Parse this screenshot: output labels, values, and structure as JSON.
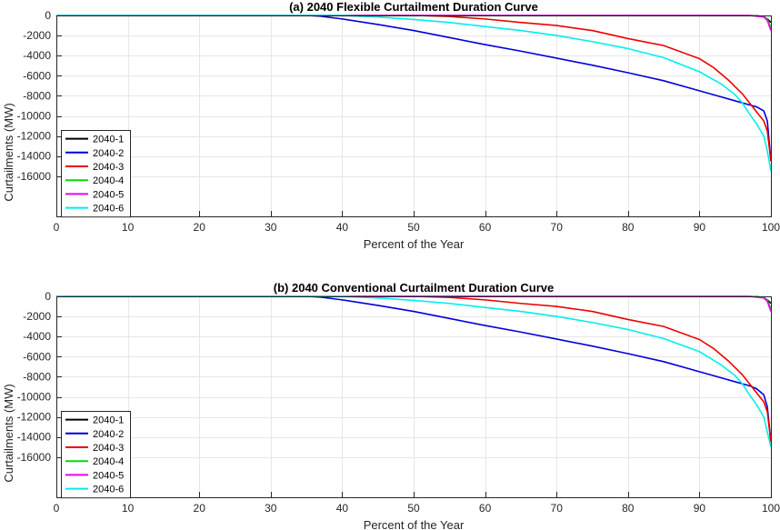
{
  "chart_data": [
    {
      "type": "line",
      "title": "(a) 2040 Flexible Curtailment Duration Curve",
      "xlabel": "Percent of the Year",
      "ylabel": "Curtailments (MW)",
      "xlim": [
        0,
        100
      ],
      "ylim": [
        -20000,
        0
      ],
      "xticks": [
        0,
        10,
        20,
        30,
        40,
        50,
        60,
        70,
        80,
        90,
        100
      ],
      "yticks": [
        0,
        -2000,
        -4000,
        -6000,
        -8000,
        -10000,
        -12000,
        -14000,
        -16000
      ],
      "grid": true,
      "legend_position": "bottom-left",
      "series": [
        {
          "name": "2040-1",
          "color": "#000000",
          "x": [
            0,
            96,
            98,
            99,
            99.5,
            100
          ],
          "y": [
            0,
            0,
            -30,
            -120,
            -350,
            -700
          ]
        },
        {
          "name": "2040-2",
          "color": "#0000dd",
          "x": [
            0,
            35,
            37,
            40,
            45,
            50,
            55,
            60,
            65,
            70,
            75,
            80,
            85,
            90,
            93,
            95,
            97,
            98,
            99,
            99.5,
            100
          ],
          "y": [
            0,
            0,
            -70,
            -350,
            -900,
            -1500,
            -2200,
            -2900,
            -3550,
            -4250,
            -4950,
            -5700,
            -6500,
            -7500,
            -8100,
            -8500,
            -8900,
            -9100,
            -9500,
            -10500,
            -14500
          ]
        },
        {
          "name": "2040-3",
          "color": "#ee0000",
          "x": [
            0,
            50,
            55,
            60,
            65,
            70,
            75,
            80,
            85,
            90,
            92,
            94,
            96,
            97,
            98,
            99,
            99.5,
            100
          ],
          "y": [
            0,
            0,
            -100,
            -350,
            -700,
            -1000,
            -1500,
            -2300,
            -3000,
            -4300,
            -5200,
            -6400,
            -7800,
            -8700,
            -9600,
            -10500,
            -11500,
            -14500
          ]
        },
        {
          "name": "2040-4",
          "color": "#00dd00",
          "x": [
            0,
            97,
            99,
            99.5,
            100
          ],
          "y": [
            0,
            0,
            -100,
            -400,
            -1200
          ]
        },
        {
          "name": "2040-5",
          "color": "#ee00ee",
          "x": [
            0,
            97,
            99,
            99.5,
            100
          ],
          "y": [
            0,
            0,
            -150,
            -500,
            -1500
          ]
        },
        {
          "name": "2040-6",
          "color": "#00eeee",
          "x": [
            0,
            40,
            45,
            50,
            55,
            60,
            65,
            70,
            75,
            80,
            85,
            90,
            93,
            95,
            96,
            97,
            98,
            99,
            99.5,
            100
          ],
          "y": [
            0,
            0,
            -150,
            -400,
            -700,
            -1100,
            -1500,
            -2000,
            -2600,
            -3300,
            -4200,
            -5600,
            -6800,
            -7900,
            -8700,
            -9800,
            -10800,
            -12000,
            -13500,
            -15500
          ]
        }
      ]
    },
    {
      "type": "line",
      "title": "(b) 2040 Conventional Curtailment Duration Curve",
      "xlabel": "Percent of the Year",
      "ylabel": "Curtailments (MW)",
      "xlim": [
        0,
        100
      ],
      "ylim": [
        -20000,
        0
      ],
      "xticks": [
        0,
        10,
        20,
        30,
        40,
        50,
        60,
        70,
        80,
        90,
        100
      ],
      "yticks": [
        0,
        -2000,
        -4000,
        -6000,
        -8000,
        -10000,
        -12000,
        -14000,
        -16000
      ],
      "grid": true,
      "legend_position": "bottom-left",
      "series": [
        {
          "name": "2040-1",
          "color": "#000000",
          "x": [
            0,
            96,
            98,
            99,
            99.5,
            100
          ],
          "y": [
            0,
            0,
            -30,
            -120,
            -350,
            -700
          ]
        },
        {
          "name": "2040-2",
          "color": "#0000dd",
          "x": [
            0,
            35,
            37,
            40,
            45,
            50,
            55,
            60,
            65,
            70,
            75,
            80,
            85,
            90,
            93,
            95,
            97,
            98,
            99,
            99.5,
            100
          ],
          "y": [
            0,
            0,
            -70,
            -350,
            -900,
            -1500,
            -2200,
            -2900,
            -3550,
            -4250,
            -4950,
            -5700,
            -6500,
            -7500,
            -8100,
            -8500,
            -8900,
            -9200,
            -9800,
            -11000,
            -14500
          ]
        },
        {
          "name": "2040-3",
          "color": "#ee0000",
          "x": [
            0,
            50,
            55,
            60,
            65,
            70,
            75,
            80,
            85,
            90,
            92,
            94,
            96,
            97,
            98,
            99,
            99.5,
            100
          ],
          "y": [
            0,
            0,
            -100,
            -350,
            -700,
            -1000,
            -1500,
            -2300,
            -3000,
            -4300,
            -5200,
            -6400,
            -7800,
            -8700,
            -9600,
            -10500,
            -11500,
            -14500
          ]
        },
        {
          "name": "2040-4",
          "color": "#00dd00",
          "x": [
            0,
            97,
            99,
            99.5,
            100
          ],
          "y": [
            0,
            0,
            -100,
            -400,
            -1200
          ]
        },
        {
          "name": "2040-5",
          "color": "#ee00ee",
          "x": [
            0,
            97,
            99,
            99.5,
            100
          ],
          "y": [
            0,
            0,
            -150,
            -500,
            -1500
          ]
        },
        {
          "name": "2040-6",
          "color": "#00eeee",
          "x": [
            0,
            40,
            45,
            50,
            55,
            60,
            65,
            70,
            75,
            80,
            85,
            90,
            93,
            95,
            96,
            97,
            98,
            99,
            99.5,
            100
          ],
          "y": [
            0,
            0,
            -150,
            -400,
            -700,
            -1100,
            -1500,
            -2000,
            -2600,
            -3300,
            -4200,
            -5500,
            -6800,
            -7900,
            -8700,
            -9800,
            -10800,
            -12000,
            -13500,
            -15000
          ]
        }
      ]
    }
  ]
}
